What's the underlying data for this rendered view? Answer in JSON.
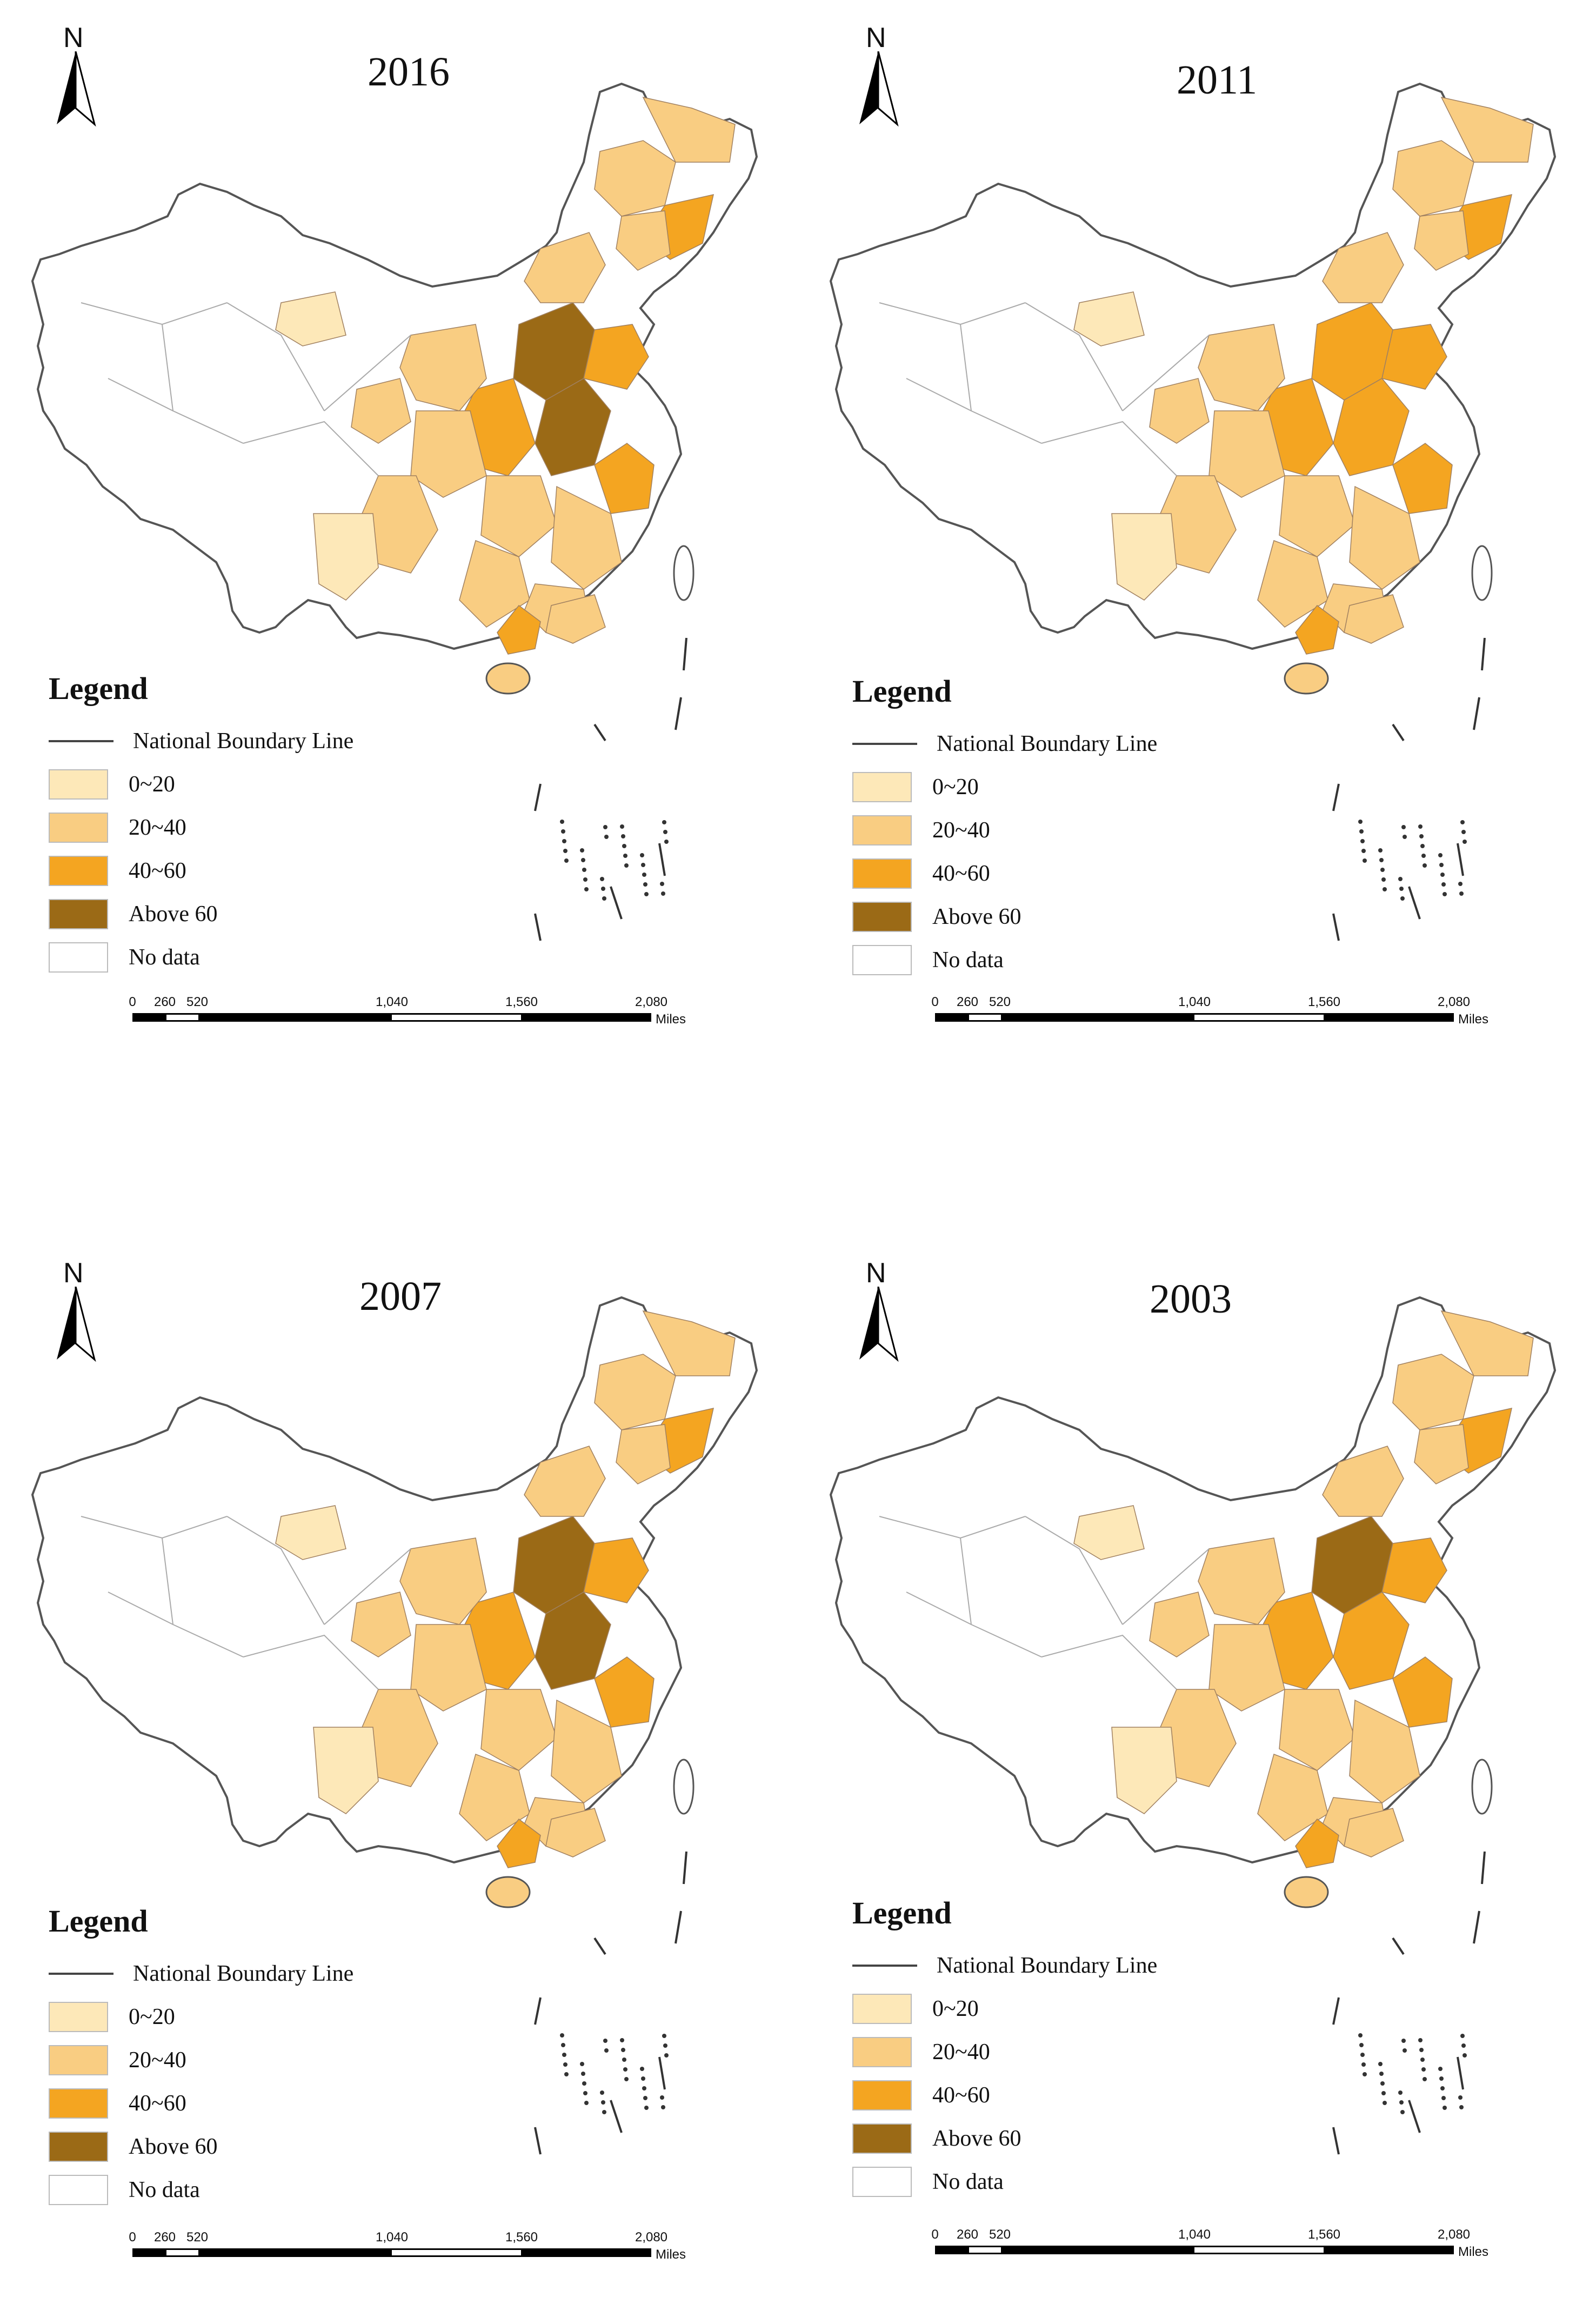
{
  "common": {
    "north_label": "N",
    "legend_title": "Legend",
    "boundary_label": "National Boundary Line",
    "classes": [
      {
        "label": "0~20",
        "color": "#fde8b8"
      },
      {
        "label": "20~40",
        "color": "#f9cd82"
      },
      {
        "label": "40~60",
        "color": "#f4a521"
      },
      {
        "label": "Above 60",
        "color": "#9b6a16"
      },
      {
        "label": "No data",
        "color": "#ffffff"
      }
    ],
    "scale": {
      "ticks": [
        "0",
        "260",
        "520",
        "1,040",
        "1,560",
        "2,080"
      ],
      "units": "Miles"
    }
  },
  "panels": [
    {
      "year": "2016"
    },
    {
      "year": "2011"
    },
    {
      "year": "2007"
    },
    {
      "year": "2003"
    }
  ]
}
